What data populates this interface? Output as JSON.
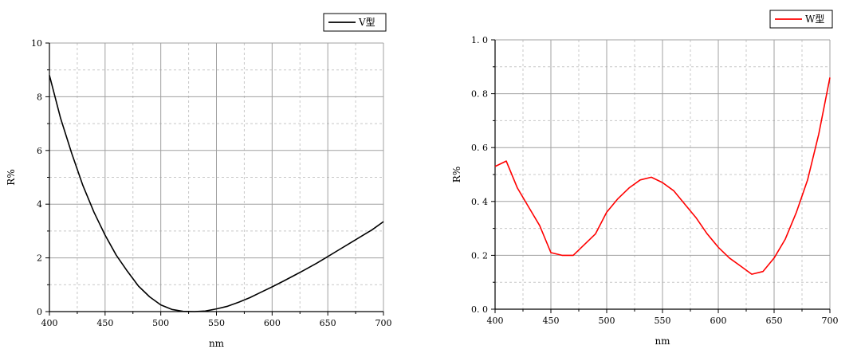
{
  "chart_data": [
    {
      "type": "line",
      "xlabel": "nm",
      "ylabel": "R%",
      "xlim": [
        400,
        700
      ],
      "ylim": [
        0,
        10
      ],
      "x_ticks": [
        "400",
        "450",
        "500",
        "550",
        "600",
        "650",
        "700"
      ],
      "y_ticks": [
        "0",
        "2",
        "4",
        "6",
        "8",
        "10"
      ],
      "grid": true,
      "legend_position": "top-right",
      "series": [
        {
          "name": "V型",
          "color": "#000000",
          "x": [
            400,
            410,
            420,
            430,
            440,
            450,
            460,
            470,
            480,
            490,
            500,
            510,
            520,
            530,
            540,
            550,
            560,
            570,
            580,
            590,
            600,
            610,
            620,
            630,
            640,
            650,
            660,
            670,
            680,
            690,
            700
          ],
          "y": [
            8.8,
            7.2,
            5.9,
            4.7,
            3.7,
            2.85,
            2.1,
            1.5,
            0.95,
            0.55,
            0.25,
            0.08,
            0.01,
            0.0,
            0.02,
            0.1,
            0.2,
            0.35,
            0.52,
            0.72,
            0.92,
            1.13,
            1.35,
            1.57,
            1.8,
            2.05,
            2.3,
            2.55,
            2.8,
            3.05,
            3.35
          ]
        }
      ]
    },
    {
      "type": "line",
      "xlabel": "nm",
      "ylabel": "R%",
      "xlim": [
        400,
        700
      ],
      "ylim": [
        0,
        1.0
      ],
      "x_ticks": [
        "400",
        "450",
        "500",
        "550",
        "600",
        "650",
        "700"
      ],
      "y_ticks": [
        "0. 0",
        "0. 2",
        "0. 4",
        "0. 6",
        "0. 8",
        "1. 0"
      ],
      "grid": true,
      "legend_position": "top-right",
      "series": [
        {
          "name": "W型",
          "color": "#ff0000",
          "x": [
            400,
            410,
            420,
            430,
            440,
            450,
            460,
            470,
            480,
            490,
            500,
            510,
            520,
            530,
            540,
            550,
            560,
            570,
            580,
            590,
            600,
            610,
            620,
            630,
            640,
            650,
            660,
            670,
            680,
            690,
            700
          ],
          "y": [
            0.53,
            0.55,
            0.45,
            0.38,
            0.31,
            0.21,
            0.2,
            0.2,
            0.24,
            0.28,
            0.36,
            0.41,
            0.45,
            0.48,
            0.49,
            0.47,
            0.44,
            0.39,
            0.34,
            0.28,
            0.23,
            0.19,
            0.16,
            0.13,
            0.14,
            0.19,
            0.26,
            0.36,
            0.48,
            0.65,
            0.86
          ]
        }
      ]
    }
  ]
}
